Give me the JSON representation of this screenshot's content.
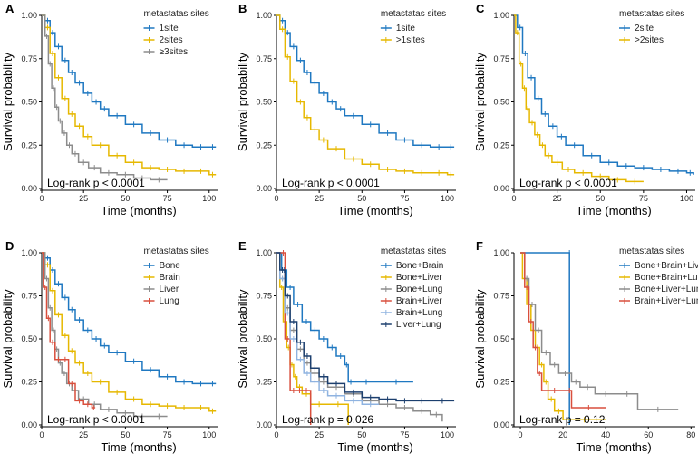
{
  "figure": {
    "ylabel": "Survival probability",
    "xlabel": "Time (months)"
  },
  "colors": {
    "blue": "#1f78c1",
    "gold": "#e6b800",
    "gray": "#8c8c8c",
    "red": "#d94f3d",
    "lightblue": "#8fb3e0",
    "navy": "#1c3f6e"
  },
  "chart_data": [
    {
      "type": "line",
      "panel": "A",
      "legend_title": "metastatas sites",
      "legend": [
        {
          "label": "1site",
          "color": "#1f78c1"
        },
        {
          "label": "2sites",
          "color": "#e6b800"
        },
        {
          "label": "≥3sites",
          "color": "#8c8c8c"
        }
      ],
      "xlim": [
        0,
        105
      ],
      "ylim": [
        0,
        1
      ],
      "xticks": [
        0,
        25,
        50,
        75,
        100
      ],
      "yticks": [
        0.0,
        0.25,
        0.5,
        0.75,
        1.0
      ],
      "ytick_labels": [
        "0.00",
        "0.25",
        "0.50",
        "0.75",
        "1.00"
      ],
      "pvalue": "Log-rank p < 0.0001",
      "series": [
        {
          "name": "1site",
          "color": "#1f78c1",
          "x": [
            0,
            2,
            5,
            8,
            12,
            16,
            20,
            25,
            30,
            35,
            40,
            50,
            60,
            70,
            80,
            90,
            100,
            104
          ],
          "y": [
            1.0,
            0.97,
            0.9,
            0.82,
            0.74,
            0.67,
            0.61,
            0.55,
            0.5,
            0.46,
            0.42,
            0.37,
            0.32,
            0.28,
            0.25,
            0.24,
            0.24,
            0.24
          ]
        },
        {
          "name": "2sites",
          "color": "#e6b800",
          "x": [
            0,
            2,
            5,
            8,
            12,
            16,
            20,
            25,
            30,
            40,
            50,
            60,
            70,
            80,
            90,
            100,
            104
          ],
          "y": [
            1.0,
            0.93,
            0.78,
            0.64,
            0.52,
            0.43,
            0.36,
            0.3,
            0.25,
            0.19,
            0.15,
            0.12,
            0.11,
            0.1,
            0.1,
            0.08,
            0.08
          ]
        },
        {
          "name": "≥3sites",
          "color": "#8c8c8c",
          "x": [
            0,
            2,
            4,
            6,
            8,
            10,
            12,
            15,
            18,
            22,
            28,
            35,
            45,
            55,
            65,
            75
          ],
          "y": [
            1.0,
            0.88,
            0.72,
            0.58,
            0.47,
            0.39,
            0.32,
            0.25,
            0.2,
            0.15,
            0.12,
            0.09,
            0.08,
            0.06,
            0.05,
            0.05
          ]
        }
      ]
    },
    {
      "type": "line",
      "panel": "B",
      "legend_title": "metastatas sites",
      "legend": [
        {
          "label": "1site",
          "color": "#1f78c1"
        },
        {
          "label": ">1sites",
          "color": "#e6b800"
        }
      ],
      "xlim": [
        0,
        105
      ],
      "ylim": [
        0,
        1
      ],
      "xticks": [
        0,
        25,
        50,
        75,
        100
      ],
      "yticks": [
        0.0,
        0.25,
        0.5,
        0.75,
        1.0
      ],
      "ytick_labels": [
        "0.00",
        "0.25",
        "0.50",
        "0.75",
        "1.00"
      ],
      "pvalue": "Log-rank p < 0.0001",
      "series": [
        {
          "name": "1site",
          "color": "#1f78c1",
          "x": [
            0,
            2,
            5,
            8,
            12,
            16,
            20,
            25,
            30,
            35,
            40,
            50,
            60,
            70,
            80,
            90,
            100,
            104
          ],
          "y": [
            1.0,
            0.97,
            0.9,
            0.82,
            0.74,
            0.67,
            0.61,
            0.55,
            0.5,
            0.46,
            0.42,
            0.37,
            0.32,
            0.28,
            0.25,
            0.24,
            0.24,
            0.24
          ]
        },
        {
          "name": ">1sites",
          "color": "#e6b800",
          "x": [
            0,
            2,
            5,
            8,
            12,
            16,
            20,
            25,
            30,
            40,
            50,
            60,
            70,
            80,
            90,
            100,
            104
          ],
          "y": [
            1.0,
            0.92,
            0.76,
            0.62,
            0.5,
            0.41,
            0.34,
            0.28,
            0.23,
            0.17,
            0.14,
            0.11,
            0.1,
            0.09,
            0.09,
            0.08,
            0.08
          ]
        }
      ]
    },
    {
      "type": "line",
      "panel": "C",
      "legend_title": "metastatas sites",
      "legend": [
        {
          "label": "2site",
          "color": "#1f78c1"
        },
        {
          "label": ">2sites",
          "color": "#e6b800"
        }
      ],
      "xlim": [
        0,
        105
      ],
      "ylim": [
        0,
        1
      ],
      "xticks": [
        0,
        25,
        50,
        75,
        100
      ],
      "yticks": [
        0.0,
        0.25,
        0.5,
        0.75,
        1.0
      ],
      "ytick_labels": [
        "0.00",
        "0.25",
        "0.50",
        "0.75",
        "1.00"
      ],
      "pvalue": "Log-rank p < 0.0001",
      "series": [
        {
          "name": "2site",
          "color": "#1f78c1",
          "x": [
            0,
            2,
            5,
            8,
            12,
            16,
            20,
            25,
            30,
            40,
            50,
            60,
            70,
            80,
            90,
            100,
            104
          ],
          "y": [
            1.0,
            0.93,
            0.78,
            0.64,
            0.52,
            0.43,
            0.36,
            0.3,
            0.25,
            0.19,
            0.15,
            0.13,
            0.12,
            0.11,
            0.1,
            0.09,
            0.08
          ]
        },
        {
          "name": ">2sites",
          "color": "#e6b800",
          "x": [
            0,
            1,
            3,
            5,
            7,
            9,
            12,
            15,
            18,
            22,
            28,
            35,
            45,
            55,
            65,
            75
          ],
          "y": [
            1.0,
            0.9,
            0.72,
            0.58,
            0.46,
            0.38,
            0.31,
            0.25,
            0.19,
            0.15,
            0.11,
            0.09,
            0.07,
            0.05,
            0.04,
            0.04
          ]
        }
      ]
    },
    {
      "type": "line",
      "panel": "D",
      "legend_title": "metastatas sites",
      "legend": [
        {
          "label": "Bone",
          "color": "#1f78c1"
        },
        {
          "label": "Brain",
          "color": "#e6b800"
        },
        {
          "label": "Liver",
          "color": "#8c8c8c"
        },
        {
          "label": "Lung",
          "color": "#d94f3d"
        }
      ],
      "xlim": [
        0,
        105
      ],
      "ylim": [
        0,
        1
      ],
      "xticks": [
        0,
        25,
        50,
        75,
        100
      ],
      "yticks": [
        0.0,
        0.25,
        0.5,
        0.75,
        1.0
      ],
      "ytick_labels": [
        "0.00",
        "0.25",
        "0.50",
        "0.75",
        "1.00"
      ],
      "pvalue": "Log-rank p < 0.0001",
      "series": [
        {
          "name": "Bone",
          "color": "#1f78c1",
          "x": [
            0,
            2,
            5,
            8,
            12,
            16,
            20,
            25,
            30,
            35,
            40,
            50,
            60,
            70,
            80,
            90,
            100,
            104
          ],
          "y": [
            1.0,
            0.97,
            0.9,
            0.82,
            0.74,
            0.67,
            0.61,
            0.55,
            0.5,
            0.46,
            0.42,
            0.37,
            0.32,
            0.28,
            0.25,
            0.24,
            0.24,
            0.24
          ]
        },
        {
          "name": "Brain",
          "color": "#e6b800",
          "x": [
            0,
            2,
            5,
            8,
            12,
            16,
            20,
            25,
            30,
            40,
            50,
            60,
            70,
            80,
            90,
            100,
            104
          ],
          "y": [
            1.0,
            0.93,
            0.78,
            0.64,
            0.52,
            0.43,
            0.36,
            0.3,
            0.25,
            0.19,
            0.15,
            0.12,
            0.11,
            0.1,
            0.1,
            0.08,
            0.08
          ]
        },
        {
          "name": "Liver",
          "color": "#8c8c8c",
          "x": [
            0,
            2,
            4,
            6,
            8,
            10,
            12,
            15,
            18,
            22,
            28,
            35,
            45,
            55,
            65,
            75
          ],
          "y": [
            1.0,
            0.85,
            0.68,
            0.55,
            0.44,
            0.36,
            0.3,
            0.24,
            0.2,
            0.15,
            0.12,
            0.09,
            0.07,
            0.05,
            0.05,
            0.05
          ]
        },
        {
          "name": "Lung",
          "color": "#d94f3d",
          "x": [
            0,
            1,
            3,
            5,
            8,
            12,
            16,
            20,
            25,
            30,
            32
          ],
          "y": [
            1.0,
            0.8,
            0.62,
            0.48,
            0.38,
            0.38,
            0.24,
            0.14,
            0.12,
            0.1,
            0.1
          ]
        }
      ]
    },
    {
      "type": "line",
      "panel": "E",
      "legend_title": "metastatas sites",
      "legend": [
        {
          "label": "Bone+Brain",
          "color": "#1f78c1"
        },
        {
          "label": "Bone+Liver",
          "color": "#e6b800"
        },
        {
          "label": "Bone+Lung",
          "color": "#8c8c8c"
        },
        {
          "label": "Brain+Liver",
          "color": "#d94f3d"
        },
        {
          "label": "Brain+Lung",
          "color": "#8fb3e0"
        },
        {
          "label": "Liver+Lung",
          "color": "#1c3f6e"
        }
      ],
      "xlim": [
        0,
        105
      ],
      "ylim": [
        0,
        1
      ],
      "xticks": [
        0,
        25,
        50,
        75,
        100
      ],
      "yticks": [
        0.0,
        0.25,
        0.5,
        0.75,
        1.0
      ],
      "ytick_labels": [
        "0.00",
        "0.25",
        "0.50",
        "0.75",
        "1.00"
      ],
      "pvalue": "Log-rank p = 0.026",
      "series": [
        {
          "name": "Bone+Brain",
          "color": "#1f78c1",
          "x": [
            0,
            3,
            6,
            10,
            15,
            20,
            25,
            30,
            35,
            40,
            42,
            45,
            60,
            80
          ],
          "y": [
            1.0,
            0.9,
            0.8,
            0.7,
            0.6,
            0.55,
            0.5,
            0.45,
            0.4,
            0.35,
            0.25,
            0.25,
            0.25,
            0.25
          ]
        },
        {
          "name": "Bone+Liver",
          "color": "#e6b800",
          "x": [
            0,
            2,
            4,
            6,
            8,
            10,
            12,
            15,
            20,
            30,
            42
          ],
          "y": [
            1.0,
            0.8,
            0.6,
            0.45,
            0.35,
            0.28,
            0.22,
            0.18,
            0.12,
            0.12,
            0.0
          ]
        },
        {
          "name": "Bone+Lung",
          "color": "#8c8c8c",
          "x": [
            0,
            2,
            5,
            8,
            12,
            16,
            20,
            25,
            30,
            40,
            50,
            60,
            70,
            80,
            90,
            97
          ],
          "y": [
            1.0,
            0.85,
            0.68,
            0.55,
            0.44,
            0.36,
            0.3,
            0.25,
            0.22,
            0.18,
            0.14,
            0.12,
            0.1,
            0.08,
            0.06,
            0.02
          ]
        },
        {
          "name": "Brain+Liver",
          "color": "#d94f3d",
          "x": [
            0,
            3,
            5,
            8,
            12,
            15,
            20
          ],
          "y": [
            1.0,
            1.0,
            0.5,
            0.2,
            0.2,
            0.2,
            0.0
          ]
        },
        {
          "name": "Brain+Lung",
          "color": "#8fb3e0",
          "x": [
            0,
            2,
            5,
            8,
            12,
            16,
            20,
            25,
            30,
            40,
            50,
            60
          ],
          "y": [
            1.0,
            0.85,
            0.65,
            0.5,
            0.38,
            0.3,
            0.25,
            0.2,
            0.17,
            0.14,
            0.12,
            0.12
          ]
        },
        {
          "name": "Liver+Lung",
          "color": "#1c3f6e",
          "x": [
            0,
            2,
            5,
            8,
            12,
            16,
            20,
            25,
            30,
            40,
            50,
            60,
            70,
            80,
            90,
            104
          ],
          "y": [
            1.0,
            0.9,
            0.75,
            0.6,
            0.48,
            0.4,
            0.33,
            0.28,
            0.24,
            0.19,
            0.16,
            0.15,
            0.14,
            0.14,
            0.14,
            0.14
          ]
        }
      ]
    },
    {
      "type": "line",
      "panel": "F",
      "legend_title": "metastatas sites",
      "legend": [
        {
          "label": "Bone+Brain+Liver",
          "color": "#1f78c1"
        },
        {
          "label": "Bone+Brain+Lung",
          "color": "#e6b800"
        },
        {
          "label": "Bone+Liver+Lung",
          "color": "#8c8c8c"
        },
        {
          "label": "Brain+Liver+Lung",
          "color": "#d94f3d"
        }
      ],
      "xlim": [
        -3,
        82
      ],
      "ylim": [
        0,
        1
      ],
      "xticks": [
        0,
        20,
        40,
        60,
        80
      ],
      "yticks": [
        0.0,
        0.25,
        0.5,
        0.75,
        1.0
      ],
      "ytick_labels": [
        "0.00",
        "0.25",
        "0.50",
        "0.75",
        "1.00"
      ],
      "pvalue": "Log-rank p = 0.12",
      "series": [
        {
          "name": "Bone+Brain+Liver",
          "color": "#1f78c1",
          "x": [
            0,
            23,
            23
          ],
          "y": [
            1.0,
            1.0,
            0.0
          ]
        },
        {
          "name": "Bone+Brain+Lung",
          "color": "#e6b800",
          "x": [
            0,
            1,
            3,
            5,
            7,
            9,
            11,
            13,
            16,
            20,
            40
          ],
          "y": [
            1.0,
            0.85,
            0.7,
            0.55,
            0.45,
            0.35,
            0.25,
            0.15,
            0.08,
            0.03,
            0.03
          ]
        },
        {
          "name": "Bone+Liver+Lung",
          "color": "#8c8c8c",
          "x": [
            0,
            2,
            4,
            7,
            10,
            14,
            18,
            24,
            28,
            35,
            45,
            55,
            74
          ],
          "y": [
            1.0,
            0.85,
            0.7,
            0.55,
            0.42,
            0.35,
            0.3,
            0.25,
            0.22,
            0.18,
            0.18,
            0.09,
            0.09
          ]
        },
        {
          "name": "Brain+Liver+Lung",
          "color": "#d94f3d",
          "x": [
            0,
            2,
            4,
            6,
            8,
            10,
            22,
            24,
            40
          ],
          "y": [
            1.0,
            0.8,
            0.6,
            0.45,
            0.3,
            0.2,
            0.2,
            0.1,
            0.1
          ]
        }
      ]
    }
  ]
}
